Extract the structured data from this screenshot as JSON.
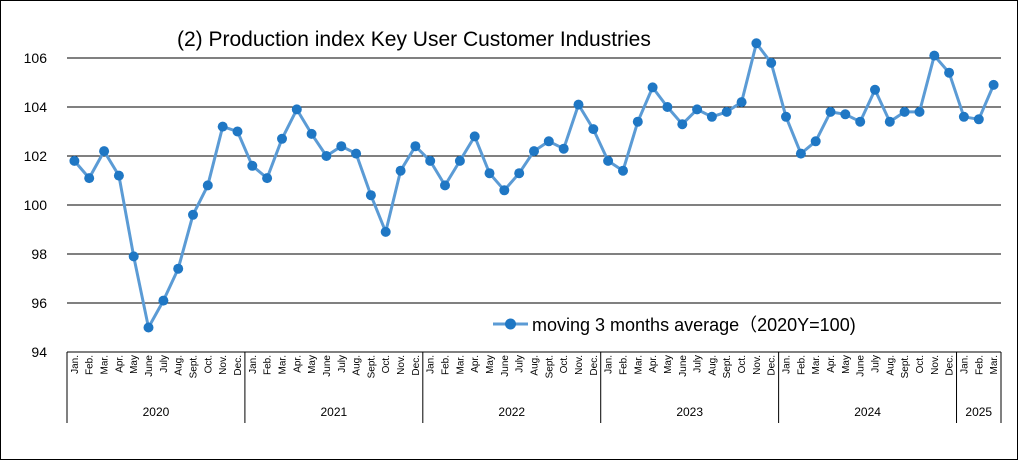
{
  "chart_data": {
    "type": "line",
    "title": "(2) Production index Key User Customer Industries",
    "ylim": [
      94,
      107
    ],
    "yticks": [
      94,
      96,
      98,
      100,
      102,
      104,
      106
    ],
    "grid": "horizontal",
    "legend_placement": "bottom-right",
    "series": [
      {
        "name": "moving 3 months average（2020Y=100)",
        "color": "#5B9BD5",
        "values": [
          101.8,
          101.1,
          102.2,
          101.2,
          97.9,
          95.0,
          96.1,
          97.4,
          99.6,
          100.8,
          103.2,
          103.0,
          101.6,
          101.1,
          102.7,
          103.9,
          102.9,
          102.0,
          102.4,
          102.1,
          100.4,
          98.9,
          101.4,
          102.4,
          101.8,
          100.8,
          101.8,
          102.8,
          101.3,
          100.6,
          101.3,
          102.2,
          102.6,
          102.3,
          104.1,
          103.1,
          101.8,
          101.4,
          103.4,
          104.8,
          104.0,
          103.3,
          103.9,
          103.6,
          103.8,
          104.2,
          106.6,
          105.8,
          103.6,
          102.1,
          102.6,
          103.8,
          103.7,
          103.4,
          104.7,
          103.4,
          103.8,
          103.8,
          106.1,
          105.4,
          103.6,
          103.5,
          104.9
        ]
      }
    ],
    "month_labels": [
      "Jan.",
      "Feb.",
      "Mar.",
      "Apr.",
      "May",
      "June",
      "July",
      "Aug.",
      "Sept.",
      "Oct.",
      "Nov.",
      "Dec."
    ],
    "years": [
      {
        "label": "2020",
        "months": 12
      },
      {
        "label": "2021",
        "months": 12
      },
      {
        "label": "2022",
        "months": 12
      },
      {
        "label": "2023",
        "months": 12
      },
      {
        "label": "2024",
        "months": 12
      },
      {
        "label": "2025",
        "months": 3
      }
    ]
  },
  "colors": {
    "series": "#5B9BD5",
    "grid": "#000000"
  }
}
